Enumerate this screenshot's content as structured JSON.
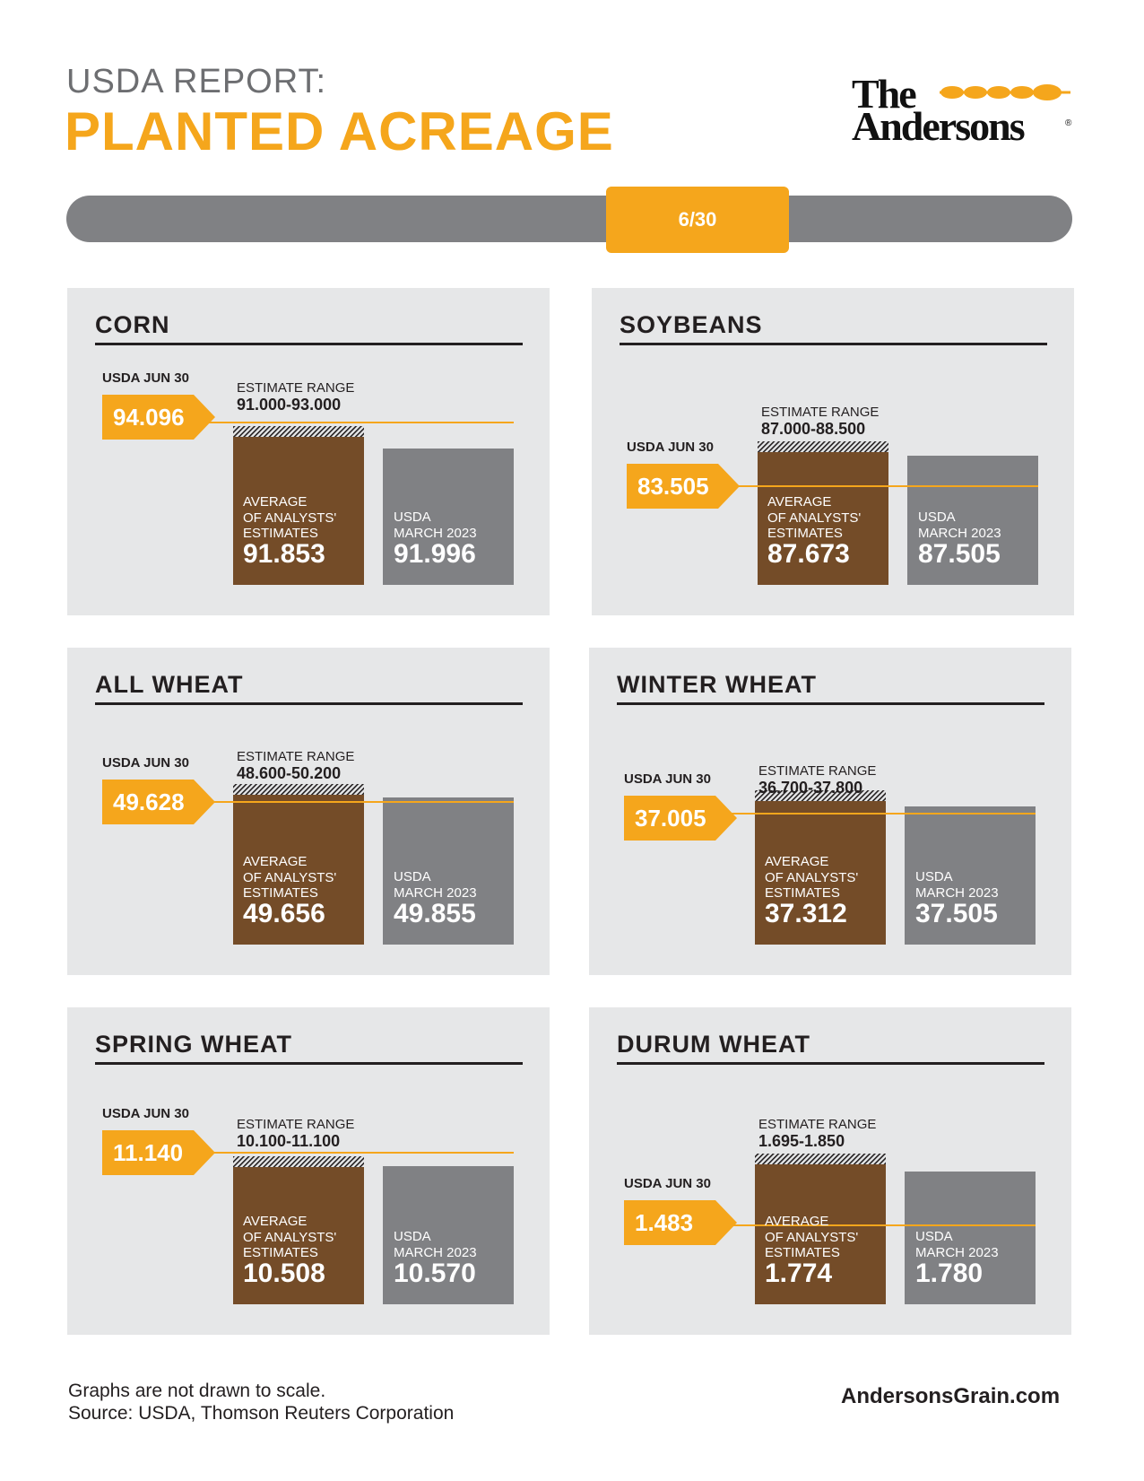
{
  "header": {
    "subtitle": "USDA REPORT:",
    "title": "PLANTED ACREAGE"
  },
  "logo": {
    "line1": "The",
    "line2": "Andersons",
    "reg": "®"
  },
  "timeline": {
    "date": "6/30"
  },
  "colors": {
    "accent": "#f5a61c",
    "brown": "#744c28",
    "gray_bar": "#808184",
    "panel_bg": "#e6e7e8"
  },
  "labels": {
    "usda_jun": "USDA JUN 30",
    "estimate_range": "ESTIMATE RANGE",
    "average": "AVERAGE\nOF ANALYSTS'\nESTIMATES",
    "march": "USDA\nMARCH 2023"
  },
  "chart_data": [
    {
      "type": "bar",
      "title": "CORN",
      "usda_jun30": "94.096",
      "estimate_range": "91.000-93.000",
      "analyst_average": "91.853",
      "usda_march_2023": "91.996"
    },
    {
      "type": "bar",
      "title": "SOYBEANS",
      "usda_jun30": "83.505",
      "estimate_range": "87.000-88.500",
      "analyst_average": "87.673",
      "usda_march_2023": "87.505"
    },
    {
      "type": "bar",
      "title": "ALL WHEAT",
      "usda_jun30": "49.628",
      "estimate_range": "48.600-50.200",
      "analyst_average": "49.656",
      "usda_march_2023": "49.855"
    },
    {
      "type": "bar",
      "title": "WINTER WHEAT",
      "usda_jun30": "37.005",
      "estimate_range": "36.700-37.800",
      "analyst_average": "37.312",
      "usda_march_2023": "37.505"
    },
    {
      "type": "bar",
      "title": "SPRING WHEAT",
      "usda_jun30": "11.140",
      "estimate_range": "10.100-11.100",
      "analyst_average": "10.508",
      "usda_march_2023": "10.570"
    },
    {
      "type": "bar",
      "title": "DURUM WHEAT",
      "usda_jun30": "1.483",
      "estimate_range": "1.695-1.850",
      "analyst_average": "1.774",
      "usda_march_2023": "1.780"
    }
  ],
  "footer": {
    "note": "Graphs are not drawn to scale.",
    "source": "Source: USDA, Thomson Reuters Corporation",
    "website": "AndersonsGrain.com"
  }
}
